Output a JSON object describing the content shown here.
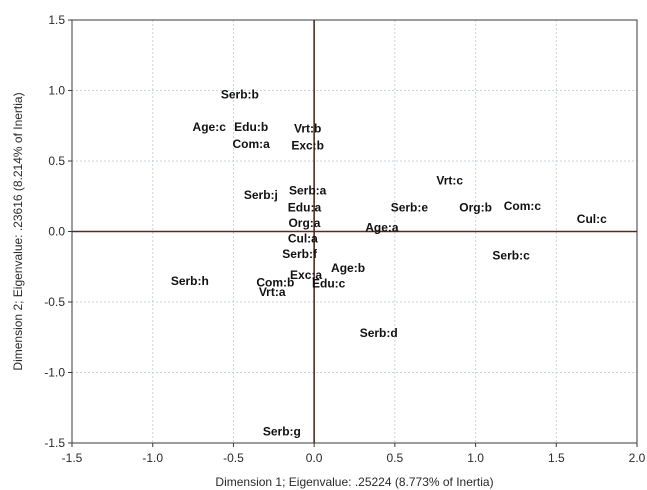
{
  "chart_data": {
    "type": "scatter",
    "title": "",
    "xlabel": "Dimension 1; Eigenvalue: .25224 (8.773% of Inertia)",
    "ylabel": "Dimension 2; Eigenvalue: .23616 (8.214% of Inertia)",
    "xlim": [
      -1.5,
      2.0
    ],
    "ylim": [
      -1.5,
      1.5
    ],
    "xticks": [
      "-1.5",
      "-1.0",
      "-0.5",
      "0.0",
      "0.5",
      "1.0",
      "1.5",
      "2.0"
    ],
    "yticks": [
      "1.5",
      "1.0",
      "0.5",
      "0.0",
      "-0.5",
      "-1.0",
      "-1.5"
    ],
    "grid": true,
    "reference_lines": {
      "x": 0.0,
      "y": 0.0
    },
    "colors": {
      "grid": "#c8d3dc",
      "reference_line": "#5a2a1a",
      "frame": "#3a3a3a",
      "label": "#111111"
    },
    "points": [
      {
        "label": "Serb:b",
        "x": -0.46,
        "y": 0.97
      },
      {
        "label": "Age:c",
        "x": -0.65,
        "y": 0.74
      },
      {
        "label": "Edu:b",
        "x": -0.39,
        "y": 0.74
      },
      {
        "label": "Com:a",
        "x": -0.39,
        "y": 0.62
      },
      {
        "label": "Vrt:b",
        "x": -0.04,
        "y": 0.73
      },
      {
        "label": "Exc:b",
        "x": -0.04,
        "y": 0.61
      },
      {
        "label": "Serb:j",
        "x": -0.33,
        "y": 0.26
      },
      {
        "label": "Serb:a",
        "x": -0.04,
        "y": 0.29
      },
      {
        "label": "Edu:a",
        "x": -0.06,
        "y": 0.17
      },
      {
        "label": "Org:a",
        "x": -0.06,
        "y": 0.06
      },
      {
        "label": "Cul:a",
        "x": -0.07,
        "y": -0.05
      },
      {
        "label": "Serb:f",
        "x": -0.09,
        "y": -0.16
      },
      {
        "label": "Age:a",
        "x": 0.42,
        "y": 0.03
      },
      {
        "label": "Age:b",
        "x": 0.21,
        "y": -0.26
      },
      {
        "label": "Serb:e",
        "x": 0.59,
        "y": 0.17
      },
      {
        "label": "Vrt:c",
        "x": 0.84,
        "y": 0.36
      },
      {
        "label": "Org:b",
        "x": 1.0,
        "y": 0.17
      },
      {
        "label": "Com:c",
        "x": 1.29,
        "y": 0.18
      },
      {
        "label": "Cul:c",
        "x": 1.72,
        "y": 0.09
      },
      {
        "label": "Serb:c",
        "x": 1.22,
        "y": -0.17
      },
      {
        "label": "Serb:h",
        "x": -0.77,
        "y": -0.35
      },
      {
        "label": "Com:b",
        "x": -0.24,
        "y": -0.36
      },
      {
        "label": "Vrt:a",
        "x": -0.26,
        "y": -0.43
      },
      {
        "label": "Exc:a",
        "x": -0.05,
        "y": -0.31
      },
      {
        "label": "Edu:c",
        "x": 0.09,
        "y": -0.37
      },
      {
        "label": "Serb:d",
        "x": 0.4,
        "y": -0.72
      },
      {
        "label": "Serb:g",
        "x": -0.2,
        "y": -1.42
      }
    ]
  }
}
